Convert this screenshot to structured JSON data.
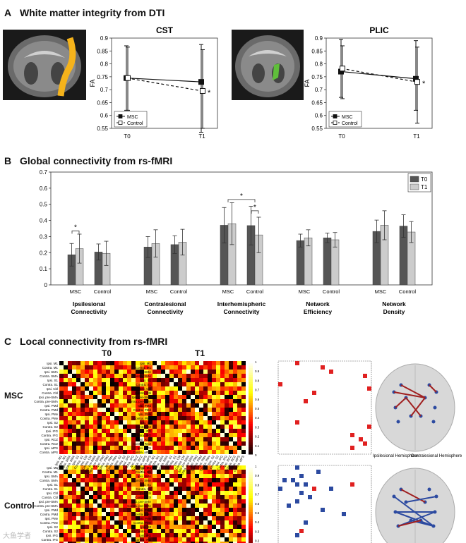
{
  "sections": {
    "a": {
      "letter": "A",
      "title": "White matter integrity from DTI"
    },
    "b": {
      "letter": "B",
      "title": "Global connectivity from rs-fMRI"
    },
    "c": {
      "letter": "C",
      "title": "Local connectivity from rs-fMRI"
    }
  },
  "colors": {
    "msc": "#555555",
    "control": "#cccccc",
    "tract_cst": "#f5b31b",
    "tract_plic": "#5fbf3a"
  },
  "chart_data": [
    {
      "type": "line",
      "title": "CST",
      "xlabel": "",
      "ylabel": "FA",
      "categories": [
        "T0",
        "T1"
      ],
      "ylim": [
        0.55,
        0.9
      ],
      "yticks": [
        "0.55",
        "0.6",
        "0.65",
        "0.7",
        "0.75",
        "0.8",
        "0.85",
        "0.9"
      ],
      "series": [
        {
          "name": "MSC",
          "values": [
            0.745,
            0.73
          ],
          "err_low": [
            0.62,
            0.535
          ],
          "err_high": [
            0.87,
            0.875
          ]
        },
        {
          "name": "Control",
          "values": [
            0.745,
            0.695
          ],
          "err_low": [
            0.62,
            0.55
          ],
          "err_high": [
            0.865,
            0.855
          ]
        }
      ],
      "annotation": "*"
    },
    {
      "type": "line",
      "title": "PLIC",
      "xlabel": "",
      "ylabel": "FA",
      "categories": [
        "T0",
        "T1"
      ],
      "ylim": [
        0.55,
        0.9
      ],
      "yticks": [
        "0.55",
        "0.6",
        "0.65",
        "0.7",
        "0.75",
        "0.8",
        "0.85",
        "0.9"
      ],
      "series": [
        {
          "name": "MSC",
          "values": [
            0.77,
            0.742
          ],
          "err_low": [
            0.67,
            0.62
          ],
          "err_high": [
            0.895,
            0.89
          ]
        },
        {
          "name": "Control",
          "values": [
            0.782,
            0.73
          ],
          "err_low": [
            0.665,
            0.57
          ],
          "err_high": [
            0.87,
            0.865
          ]
        }
      ],
      "annotation": "*"
    },
    {
      "type": "bar",
      "title": "",
      "ylim": [
        0,
        0.7
      ],
      "yticks": [
        "0",
        "0.1",
        "0.2",
        "0.3",
        "0.4",
        "0.5",
        "0.6",
        "0.7"
      ],
      "legend": [
        "T0",
        "T1"
      ],
      "groups": [
        {
          "label": "Ipsilesional Connectivity",
          "bars": [
            {
              "name": "MSC",
              "t0": 0.187,
              "t1": 0.225,
              "t0_err": 0.07,
              "t1_err": 0.09
            },
            {
              "name": "Control",
              "t0": 0.204,
              "t1": 0.196,
              "t0_err": 0.05,
              "t1_err": 0.075
            }
          ]
        },
        {
          "label": "Contralesional Connectivity",
          "bars": [
            {
              "name": "MSC",
              "t0": 0.235,
              "t1": 0.257,
              "t0_err": 0.065,
              "t1_err": 0.085
            },
            {
              "name": "Control",
              "t0": 0.25,
              "t1": 0.265,
              "t0_err": 0.055,
              "t1_err": 0.08
            }
          ]
        },
        {
          "label": "Interhemispheric Connectivity",
          "bars": [
            {
              "name": "MSC",
              "t0": 0.37,
              "t1": 0.38,
              "t0_err": 0.11,
              "t1_err": 0.13
            },
            {
              "name": "Control",
              "t0": 0.368,
              "t1": 0.31,
              "t0_err": 0.12,
              "t1_err": 0.11
            }
          ]
        },
        {
          "label": "Network Efficiency",
          "bars": [
            {
              "name": "MSC",
              "t0": 0.275,
              "t1": 0.292,
              "t0_err": 0.04,
              "t1_err": 0.05
            },
            {
              "name": "Control",
              "t0": 0.292,
              "t1": 0.28,
              "t0_err": 0.03,
              "t1_err": 0.045
            }
          ]
        },
        {
          "label": "Network Density",
          "bars": [
            {
              "name": "MSC",
              "t0": 0.332,
              "t1": 0.37,
              "t0_err": 0.07,
              "t1_err": 0.09
            },
            {
              "name": "Control",
              "t0": 0.365,
              "t1": 0.328,
              "t0_err": 0.07,
              "t1_err": 0.065
            }
          ]
        }
      ],
      "group_line1": [
        "Ipsilesional",
        "Contralesional",
        "Interhemispheric",
        "Network",
        "Network"
      ],
      "group_line2": [
        "Connectivity",
        "Connectivity",
        "Connectivity",
        "Efficiency",
        "Density"
      ],
      "significance": [
        "*",
        "*",
        "*"
      ]
    }
  ],
  "panel_c": {
    "col_titles": [
      "T0",
      "T1"
    ],
    "row_labels": [
      "MSC",
      "Control"
    ],
    "regions": [
      "Ipsi. M1",
      "Contra. M1",
      "Ipsi. SMA",
      "Contra. SMA",
      "Ipsi. S1",
      "Contra. S1",
      "Ipsi. Cbl",
      "Contra. Cbl",
      "Ipsi. pre-SMA",
      "Contra. pre-SMA",
      "Ipsi. PMd",
      "Contra. PMd",
      "Ipsi. PMv",
      "Contra. PMv",
      "Ipsi. S2",
      "Contra. S2",
      "Ipsi. IFG",
      "Contra. IFG",
      "Ipsi. RCZ",
      "Contra. RCZ",
      "Ipsi. aIPS",
      "Contra. aIPS"
    ],
    "colorbar_ticks": [
      "1",
      "0.9",
      "0.8",
      "0.7",
      "0.6",
      "0.5",
      "0.4",
      "0.3",
      "0.2",
      "0.1",
      "0"
    ],
    "hemisphere_left": "Ipsilesional Hemisphere",
    "hemisphere_right": "Contralesional Hemisphere",
    "watermark": "大鱼学者"
  }
}
